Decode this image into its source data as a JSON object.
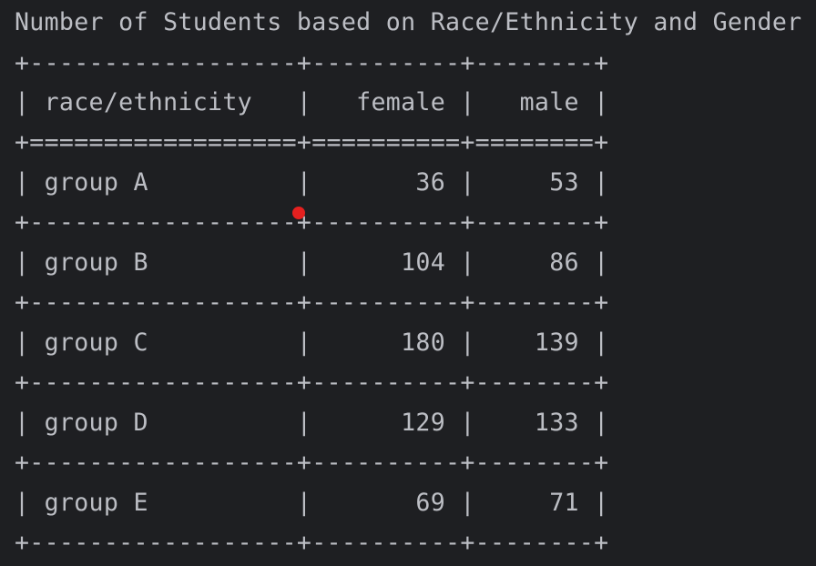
{
  "title": "Number of Students based on Race/Ethnicity and Gender",
  "table": {
    "border": "+------------------+----------+--------+",
    "header_separator": "+==================+==========+========+",
    "header_line": "| race/ethnicity   |   female |   male |",
    "rows": [
      "| group A          |       36 |     53 |",
      "| group B          |      104 |     86 |",
      "| group C          |      180 |    139 |",
      "| group D          |      129 |    133 |",
      "| group E          |       69 |     71 |"
    ],
    "columns": [
      "race/ethnicity",
      "female",
      "male"
    ],
    "data": [
      {
        "race_ethnicity": "group A",
        "female": 36,
        "male": 53
      },
      {
        "race_ethnicity": "group B",
        "female": 104,
        "male": 86
      },
      {
        "race_ethnicity": "group C",
        "female": 180,
        "male": 139
      },
      {
        "race_ethnicity": "group D",
        "female": 129,
        "male": 133
      },
      {
        "race_ethnicity": "group E",
        "female": 69,
        "male": 71
      }
    ]
  },
  "colors": {
    "background": "#1e1f22",
    "text": "#bcbec4",
    "marker": "#e5201f"
  }
}
